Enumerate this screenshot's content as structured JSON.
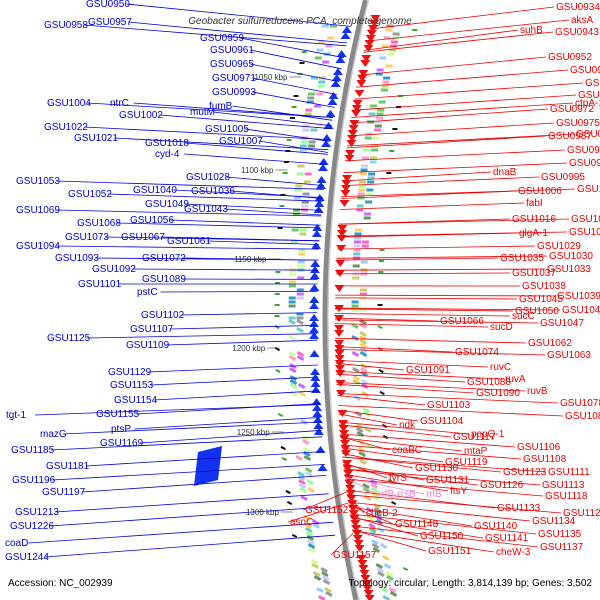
{
  "title": "Geobacter sulfurreducens PCA, complete genome",
  "accession": "Accession: NC_002939",
  "summary": "Topology: circular; Length: 3,814,139 bp; Genes: 3,502",
  "colors": {
    "reverse_label": "#0000dd",
    "forward_label": "#ee0000",
    "rrna_label": "#ee88cc",
    "backbone": "#888888",
    "tick": "#228822"
  },
  "kbp_ticks": [
    "1050 kbp",
    "1100 kbp",
    "1150 kbp",
    "1200 kbp",
    "1250 kbp",
    "1300 kbp"
  ],
  "left_labels": [
    "GSU0950",
    "GSU0958",
    "GSU0957",
    "GSU0959",
    "GSU0961",
    "GSU0965",
    "GSU0971",
    "GSU0993",
    "GSU1004",
    "ntrC",
    "fumB",
    "mutM",
    "GSU1002",
    "GSU1022",
    "GSU1005",
    "GSU1021",
    "GSU1018",
    "GSU1007",
    "cyd-4",
    "GSU1028",
    "GSU1053",
    "GSU1040",
    "GSU1036",
    "GSU1052",
    "GSU1049",
    "GSU1043",
    "GSU1069",
    "GSU1068",
    "GSU1056",
    "GSU1073",
    "GSU1067",
    "GSU1061",
    "GSU1094",
    "GSU1093",
    "GSU1072",
    "GSU1092",
    "GSU1089",
    "GSU1101",
    "pstC",
    "GSU1102",
    "GSU1125",
    "GSU1107",
    "GSU1109",
    "GSU1129",
    "GSU1153",
    "GSU1154",
    "GSU1155",
    "ptsP",
    "tgt-1",
    "mazG",
    "GSU1169",
    "GSU1185",
    "GSU1181",
    "GSU1196",
    "GSU1197",
    "GSU1213",
    "GSU1226",
    "coaD",
    "GSU1244"
  ],
  "right_labels": [
    "GSU0934",
    "aksA",
    "suhB",
    "GSU0943",
    "GSU0952",
    "GSU0955",
    "GSU0960",
    "GSU0964",
    "GSU0972",
    "ctpA-1",
    "GSU0975",
    "GSU0987",
    "GSU0981",
    "GSU0988",
    "GSU0991",
    "dnaB",
    "GSU0995",
    "GSU1006",
    "GSU1000",
    "fabI",
    "GSU1016",
    "GSU1011",
    "glgA-1",
    "GSU1017",
    "GSU1029",
    "GSU1035",
    "GSU1030",
    "GSU1037",
    "GSU1033",
    "GSU1038",
    "GSU1045",
    "GSU1039",
    "GSU1050",
    "GSU1042",
    "GSU1066",
    "sucC",
    "GSU1047",
    "sucD",
    "GSU1062",
    "GSU1074",
    "GSU1063",
    "ruvC",
    "GSU1091",
    "GSU1088",
    "ruvA",
    "GSU1090",
    "ruvB",
    "GSU1078",
    "GSU1103",
    "GSU1086",
    "GSU1104",
    "ndk",
    "GSU1117",
    "pepQ-1",
    "coaBC",
    "mtaP",
    "GSU1106",
    "GSU1119",
    "GSU1108",
    "GSU1130",
    "GSU1123",
    "GSU1111",
    "tyrS",
    "GSU1131",
    "GSU1126",
    "GSU1113",
    "rrfB-rrsB",
    "rrlB",
    "ftsY",
    "GSU1118",
    "GSU1133",
    "GSU1123",
    "GSU1152",
    "cheB-2",
    "GSU1134",
    "asnC",
    "GSU1148",
    "GSU1140",
    "GSU1135",
    "GSU1150",
    "GSU1141",
    "GSU1137",
    "GSU1151",
    "cheW-3",
    "GSU1157"
  ]
}
